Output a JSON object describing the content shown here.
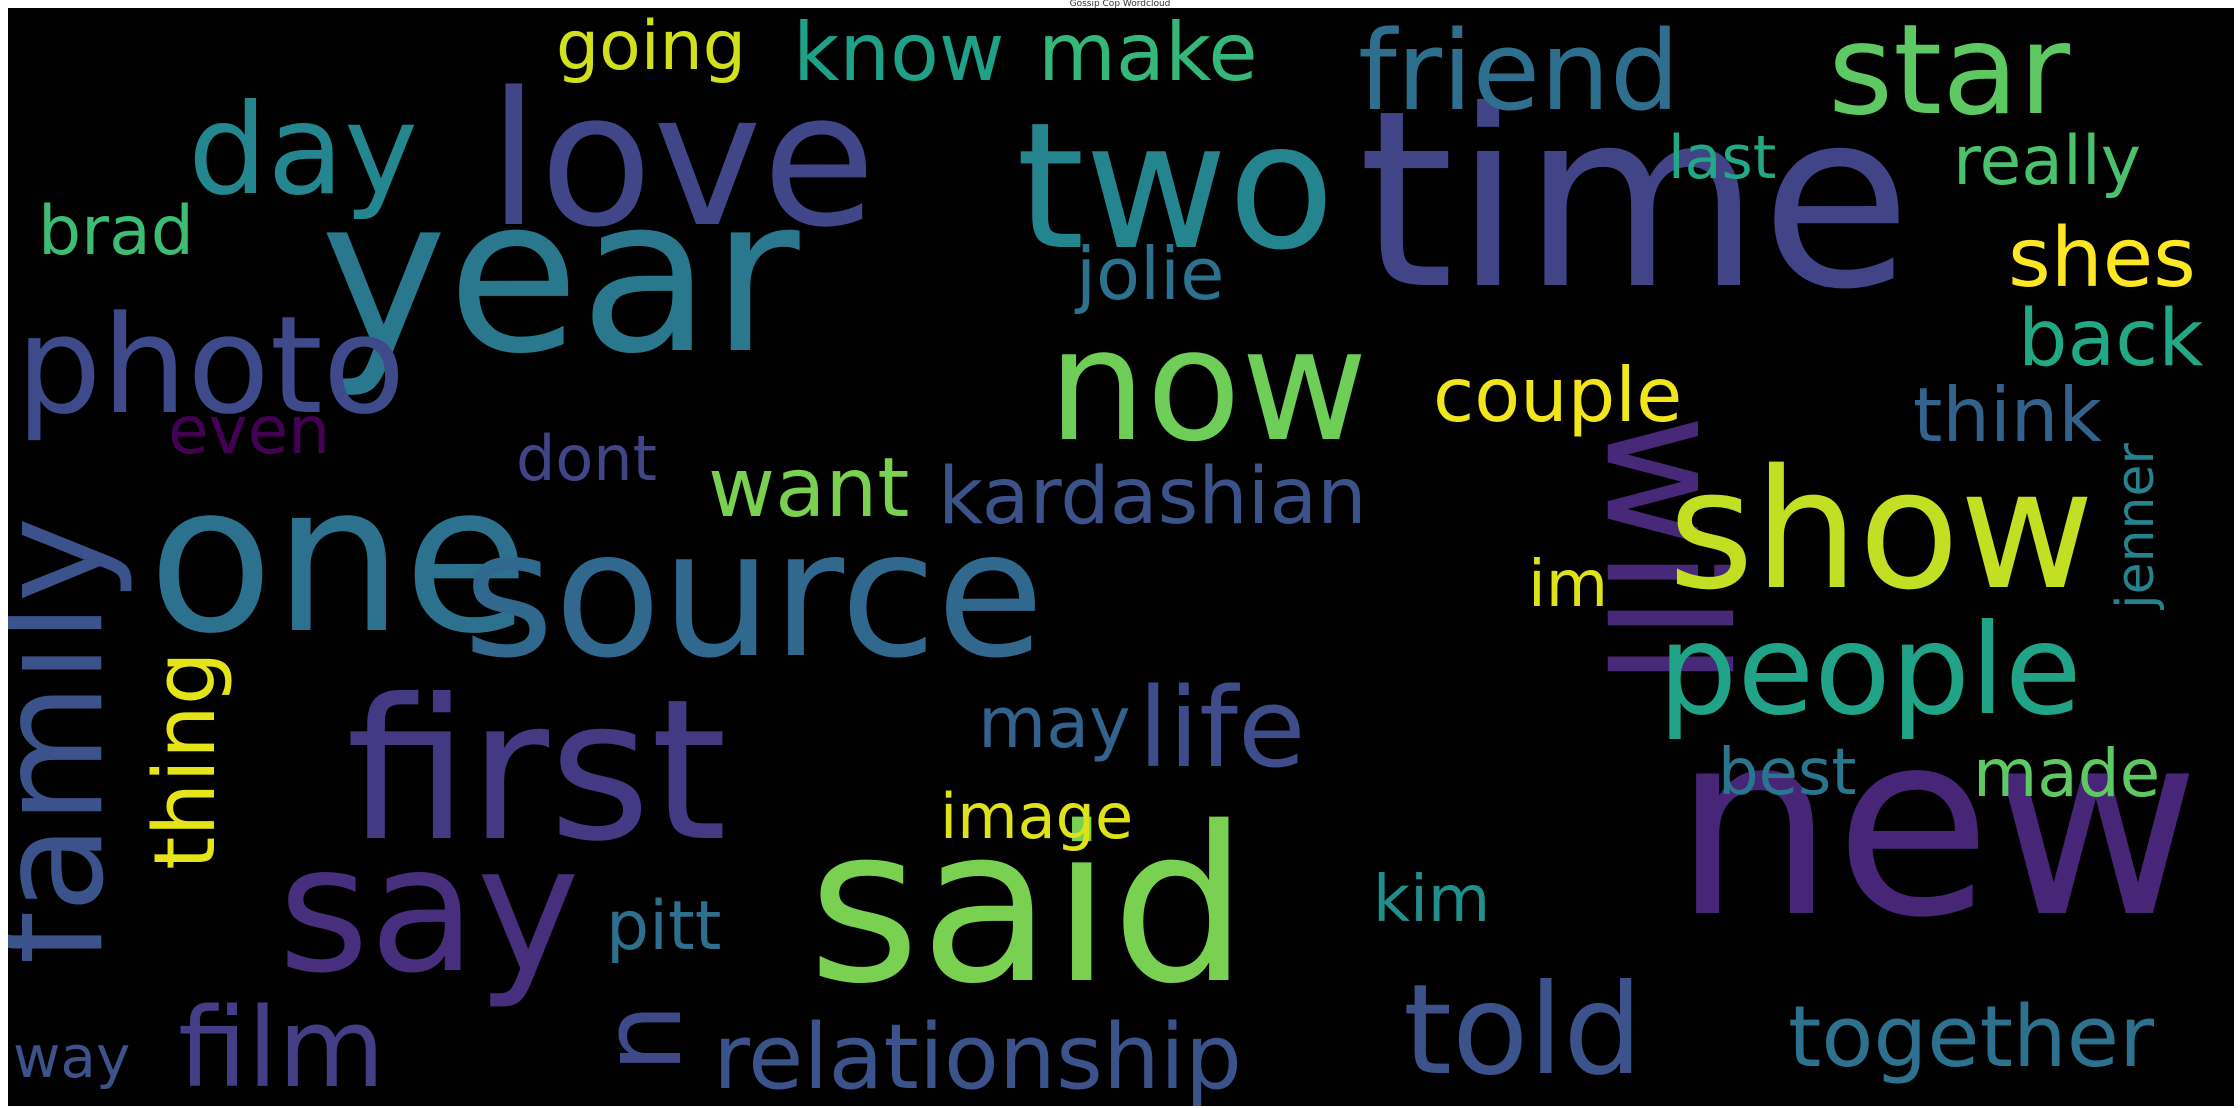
{
  "figure": {
    "title": "Gossip Cop Wordcloud",
    "background": "#000000"
  },
  "words": [
    {
      "text": "time",
      "color": "#414487"
    },
    {
      "text": "year",
      "color": "#2a788e"
    },
    {
      "text": "new",
      "color": "#482677"
    },
    {
      "text": "said",
      "color": "#7ad151"
    },
    {
      "text": "one",
      "color": "#2c728e"
    },
    {
      "text": "source",
      "color": "#31688e"
    },
    {
      "text": "love",
      "color": "#404688"
    },
    {
      "text": "two",
      "color": "#25858e"
    },
    {
      "text": "will",
      "color": "#482878"
    },
    {
      "text": "first",
      "color": "#443a83"
    },
    {
      "text": "show",
      "color": "#c2df23"
    },
    {
      "text": "now",
      "color": "#6ece58"
    },
    {
      "text": "say",
      "color": "#472f7d"
    },
    {
      "text": "family",
      "color": "#3b528b"
    },
    {
      "text": "photo",
      "color": "#3e4a89"
    },
    {
      "text": "day",
      "color": "#24868e"
    },
    {
      "text": "friend",
      "color": "#2e6f8e"
    },
    {
      "text": "star",
      "color": "#5ec962"
    },
    {
      "text": "people",
      "color": "#20a386"
    },
    {
      "text": "told",
      "color": "#3b528b"
    },
    {
      "text": "u",
      "color": "#3e4989"
    },
    {
      "text": "film",
      "color": "#433e85"
    },
    {
      "text": "life",
      "color": "#3e4c8a"
    },
    {
      "text": "relationship",
      "color": "#3b528b"
    },
    {
      "text": "together",
      "color": "#2c728e"
    },
    {
      "text": "kardashian",
      "color": "#3b528b"
    },
    {
      "text": "shes",
      "color": "#fde725"
    },
    {
      "text": "couple",
      "color": "#f1e51d"
    },
    {
      "text": "back",
      "color": "#22a884"
    },
    {
      "text": "think",
      "color": "#33638d"
    },
    {
      "text": "know",
      "color": "#1fa187"
    },
    {
      "text": "make",
      "color": "#35b779"
    },
    {
      "text": "going",
      "color": "#d0e11c"
    },
    {
      "text": "jolie",
      "color": "#2c728e"
    },
    {
      "text": "want",
      "color": "#7ad151"
    },
    {
      "text": "thing",
      "color": "#e5e419"
    },
    {
      "text": "even",
      "color": "#440154"
    },
    {
      "text": "brad",
      "color": "#3dbc74"
    },
    {
      "text": "dont",
      "color": "#414487"
    },
    {
      "text": "may",
      "color": "#33638d"
    },
    {
      "text": "image",
      "color": "#dde318"
    },
    {
      "text": "pitt",
      "color": "#2d708e"
    },
    {
      "text": "kim",
      "color": "#21908d"
    },
    {
      "text": "best",
      "color": "#2a768e"
    },
    {
      "text": "made",
      "color": "#5ec962"
    },
    {
      "text": "im",
      "color": "#dde318"
    },
    {
      "text": "jenner",
      "color": "#26828e"
    },
    {
      "text": "last",
      "color": "#22a884"
    },
    {
      "text": "really",
      "color": "#4ac16d"
    },
    {
      "text": "way",
      "color": "#3b528b"
    }
  ]
}
